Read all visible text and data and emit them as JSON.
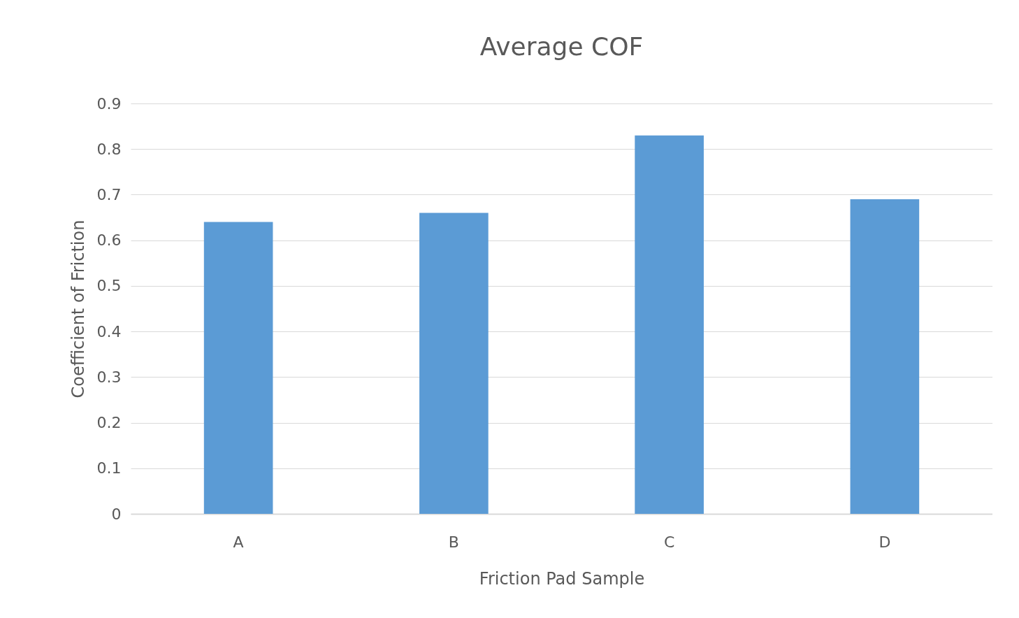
{
  "chart_data": {
    "type": "bar",
    "title": "Average COF",
    "xlabel": "Friction Pad Sample",
    "ylabel": "Coefficient of Friction",
    "categories": [
      "A",
      "B",
      "C",
      "D"
    ],
    "values": [
      0.64,
      0.66,
      0.83,
      0.69
    ],
    "color": "#5b9bd5",
    "ylim": [
      0,
      0.9
    ],
    "yticks": [
      0,
      0.1,
      0.2,
      0.3,
      0.4,
      0.5,
      0.6,
      0.7,
      0.8,
      0.9
    ],
    "grid": "y"
  }
}
